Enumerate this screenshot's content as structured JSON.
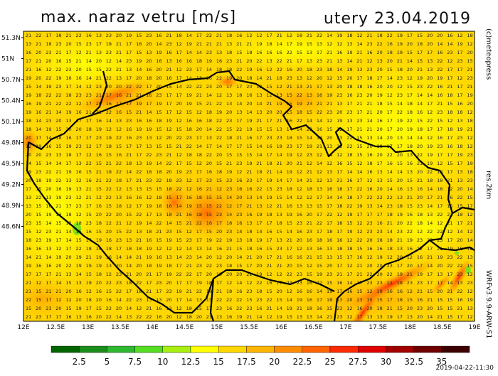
{
  "header": {
    "title": "max. naraz vetru [m/s]",
    "date": "utery 23.04.2019"
  },
  "side_labels": {
    "brand": "(c)meteopress",
    "resolution": "res.2km",
    "model": "WRFv3.9.9-ARW-S1"
  },
  "timestamp": "2019-04-22-11:30",
  "axes": {
    "lat_ticks": [
      "51.3N",
      "51N",
      "50.7N",
      "50.4N",
      "50.1N",
      "49.8N",
      "49.5N",
      "49.2N",
      "48.9N",
      "48.6N"
    ],
    "lon_ticks": [
      "12E",
      "12.5E",
      "13E",
      "13.5E",
      "14E",
      "14.5E",
      "15E",
      "15.5E",
      "16E",
      "16.5E",
      "17E",
      "17.5E",
      "18E",
      "18.5E",
      "19E"
    ]
  },
  "legend": {
    "labels": [
      "2.5",
      "5",
      "7.5",
      "10",
      "12.5",
      "15",
      "17.5",
      "20",
      "22.5",
      "25",
      "27.5",
      "30",
      "32.5",
      "35"
    ],
    "colors": [
      "#006400",
      "#1a8c1a",
      "#2eb82e",
      "#55dd22",
      "#a8ee10",
      "#ffff00",
      "#ffd700",
      "#ffb400",
      "#ff8c00",
      "#ff6400",
      "#ff2a00",
      "#e00000",
      "#a00000",
      "#6e0000",
      "#3c0000"
    ]
  },
  "map": {
    "field_colors": {
      "low": "#ffff00",
      "mid": "#ffd700",
      "high": "#ffa500",
      "gust": "#ff6400"
    },
    "sample_values": [
      "16",
      "17",
      "18",
      "19",
      "20",
      "21",
      "22",
      "23",
      "14",
      "15",
      "13",
      "12"
    ]
  }
}
